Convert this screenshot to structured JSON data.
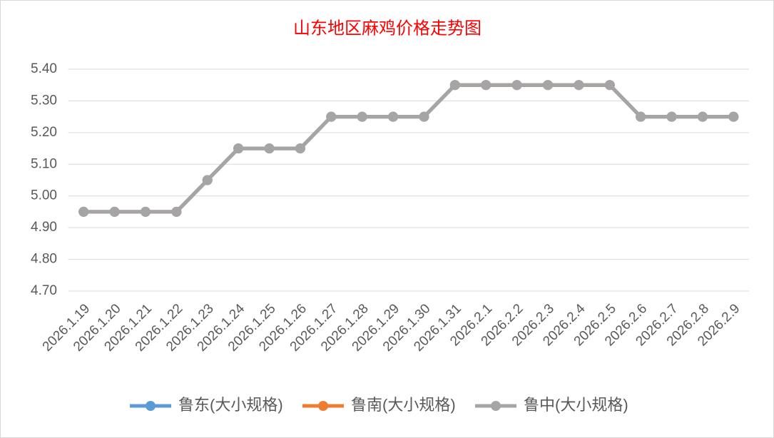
{
  "chart_data": {
    "type": "line",
    "title": "山东地区麻鸡价格走势图",
    "categories": [
      "2026.1.19",
      "2026.1.20",
      "2026.1.21",
      "2026.1.22",
      "2026.1.23",
      "2026.1.24",
      "2026.1.25",
      "2026.1.26",
      "2026.1.27",
      "2026.1.28",
      "2026.1.29",
      "2026.1.30",
      "2026.1.31",
      "2026.2.1",
      "2026.2.2",
      "2026.2.3",
      "2026.2.4",
      "2026.2.5",
      "2026.2.6",
      "2026.2.7",
      "2026.2.8",
      "2026.2.9"
    ],
    "series": [
      {
        "name": "鲁东(大小规格)",
        "color": "#5b9bd5",
        "values": [
          4.95,
          4.95,
          4.95,
          4.95,
          5.05,
          5.15,
          5.15,
          5.15,
          5.25,
          5.25,
          5.25,
          5.25,
          5.35,
          5.35,
          5.35,
          5.35,
          5.35,
          5.35,
          5.25,
          5.25,
          5.25,
          5.25
        ]
      },
      {
        "name": "鲁南(大小规格)",
        "color": "#ed7d31",
        "values": [
          4.95,
          4.95,
          4.95,
          4.95,
          5.05,
          5.15,
          5.15,
          5.15,
          5.25,
          5.25,
          5.25,
          5.25,
          5.35,
          5.35,
          5.35,
          5.35,
          5.35,
          5.35,
          5.25,
          5.25,
          5.25,
          5.25
        ]
      },
      {
        "name": "鲁中(大小规格)",
        "color": "#a5a5a5",
        "values": [
          4.95,
          4.95,
          4.95,
          4.95,
          5.05,
          5.15,
          5.15,
          5.15,
          5.25,
          5.25,
          5.25,
          5.25,
          5.35,
          5.35,
          5.35,
          5.35,
          5.35,
          5.35,
          5.25,
          5.25,
          5.25,
          5.25
        ]
      }
    ],
    "ylim": [
      4.7,
      5.4
    ],
    "yticks": [
      {
        "value": 4.7,
        "label": "4.70"
      },
      {
        "value": 4.8,
        "label": "4.80"
      },
      {
        "value": 4.9,
        "label": "4.90"
      },
      {
        "value": 5.0,
        "label": "5.00"
      },
      {
        "value": 5.1,
        "label": "5.10"
      },
      {
        "value": 5.2,
        "label": "5.20"
      },
      {
        "value": 5.3,
        "label": "5.30"
      },
      {
        "value": 5.4,
        "label": "5.40"
      }
    ],
    "grid": true,
    "legend": "bottom"
  }
}
